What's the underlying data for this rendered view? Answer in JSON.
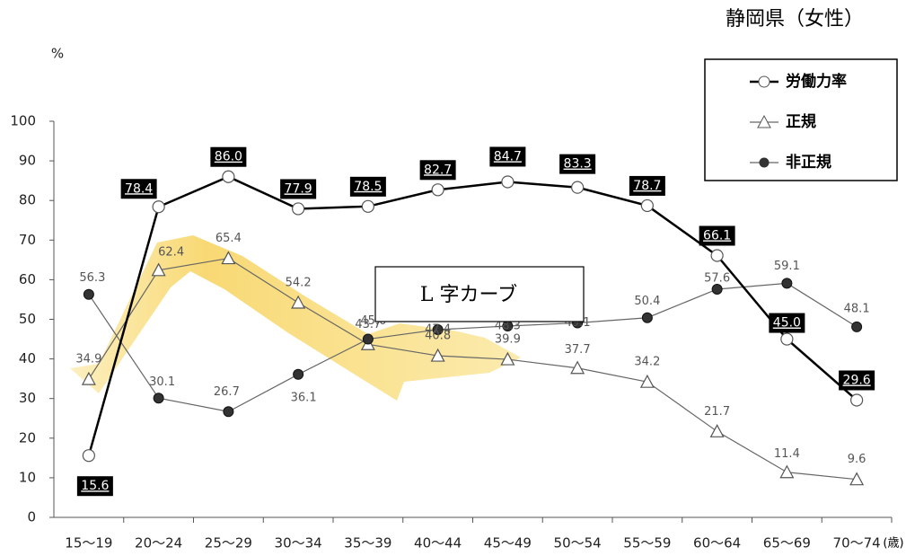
{
  "chart_data": {
    "type": "line",
    "title": "静岡県（女性）",
    "y_label": "%",
    "x_label": "(歳)",
    "annotation": "L 字カーブ",
    "categories": [
      "15〜19",
      "20〜24",
      "25〜29",
      "30〜34",
      "35〜39",
      "40〜44",
      "45〜49",
      "50〜54",
      "55〜59",
      "60〜64",
      "65〜69",
      "70〜74"
    ],
    "ylim": [
      0,
      100
    ],
    "yticks": [
      0,
      10,
      20,
      30,
      40,
      50,
      60,
      70,
      80,
      90,
      100
    ],
    "series": [
      {
        "name": "労働力率",
        "color": "#000000",
        "marker": "circle",
        "values": [
          15.6,
          78.4,
          86.0,
          77.9,
          78.5,
          82.7,
          84.7,
          83.3,
          78.7,
          66.1,
          45.0,
          29.6
        ],
        "value_labels": [
          "15.6",
          "78.4",
          "86.0",
          "77.9",
          "78.5",
          "82.7",
          "84.7",
          "83.3",
          "78.7",
          "66.1",
          "45.0",
          "29.6"
        ]
      },
      {
        "name": "正規",
        "color": "#555555",
        "marker": "triangle",
        "values": [
          34.9,
          62.4,
          65.4,
          54.2,
          43.7,
          40.8,
          39.9,
          37.7,
          34.2,
          21.7,
          11.4,
          9.6
        ],
        "value_labels": [
          "34.9",
          "62.4",
          "65.4",
          "54.2",
          "43.7",
          "40.8",
          "39.9",
          "37.7",
          "34.2",
          "21.7",
          "11.4",
          "9.6"
        ]
      },
      {
        "name": "非正規",
        "color": "#333333",
        "marker": "dot",
        "values": [
          56.3,
          30.1,
          26.7,
          36.1,
          45.0,
          47.4,
          48.3,
          49.1,
          50.4,
          57.6,
          59.1,
          48.1
        ],
        "value_labels": [
          "56.3",
          "30.1",
          "26.7",
          "36.1",
          "45.0",
          "47.4",
          "48.3",
          "49.1",
          "50.4",
          "57.6",
          "59.1",
          "48.1"
        ]
      }
    ]
  }
}
